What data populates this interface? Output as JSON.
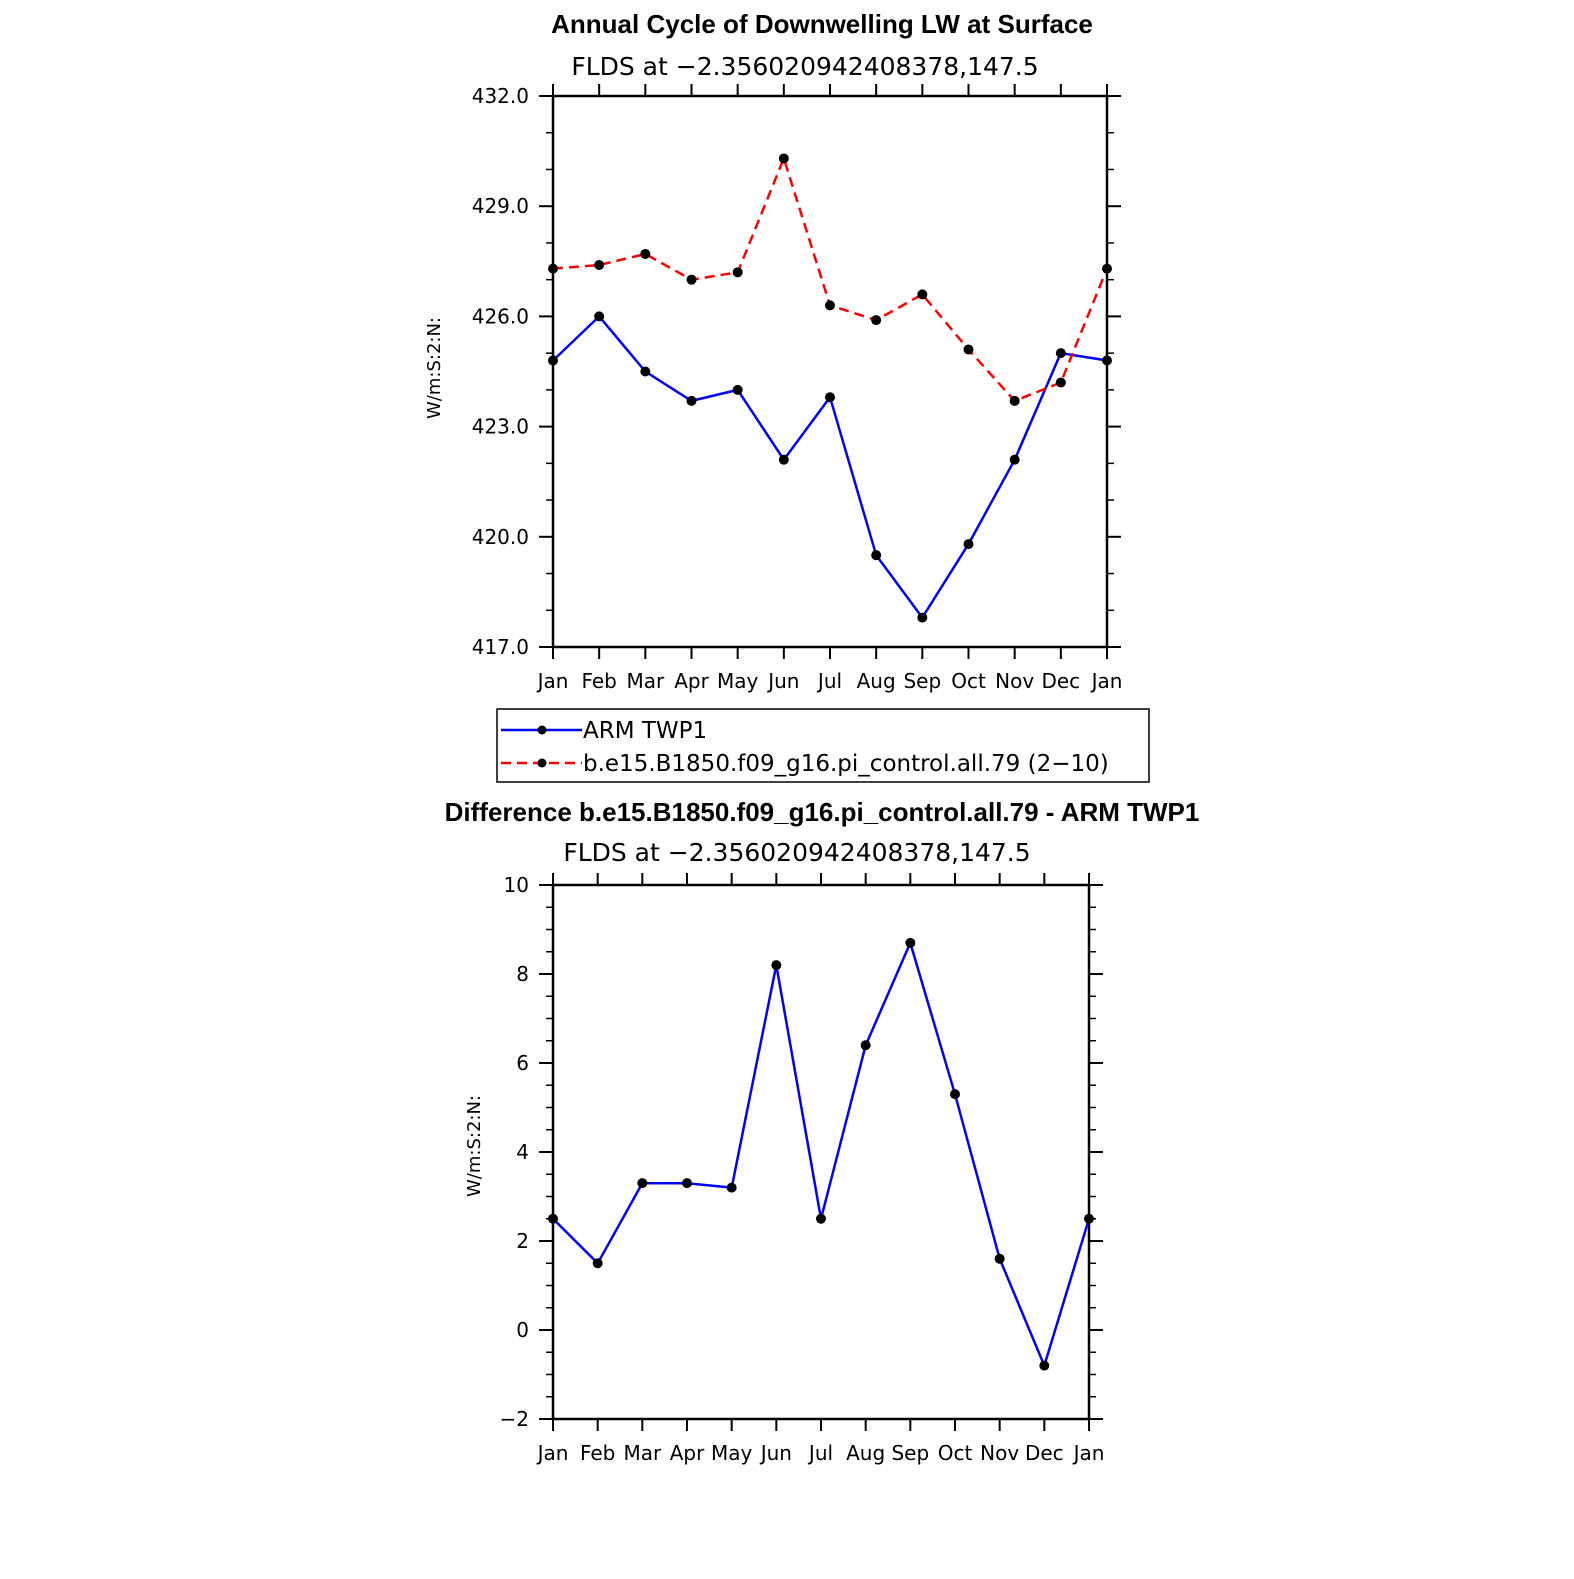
{
  "chart_data": [
    {
      "type": "line",
      "title": "Annual Cycle of Downwelling LW at Surface",
      "subtitle": "FLDS at −2.356020942408378,147.5",
      "ylabel": "W/m:S:2:N:",
      "xlabel": "",
      "categories": [
        "Jan",
        "Feb",
        "Mar",
        "Apr",
        "May",
        "Jun",
        "Jul",
        "Aug",
        "Sep",
        "Oct",
        "Nov",
        "Dec",
        "Jan"
      ],
      "ylim": [
        417.0,
        432.0
      ],
      "yticks": [
        "417.0",
        "420.0",
        "423.0",
        "426.0",
        "429.0",
        "432.0"
      ],
      "grid": false,
      "legend_position": "below",
      "series": [
        {
          "name": "ARM TWP1",
          "color": "#0000ff",
          "dash": "solid",
          "values": [
            424.8,
            426.0,
            424.5,
            423.7,
            424.0,
            422.1,
            423.8,
            419.5,
            417.8,
            419.8,
            422.1,
            425.0,
            424.8
          ]
        },
        {
          "name": "b.e15.B1850.f09_g16.pi_control.all.79 (2−10)",
          "color": "#ff0000",
          "dash": "dashed",
          "values": [
            427.3,
            427.4,
            427.7,
            427.0,
            427.2,
            430.3,
            426.3,
            425.9,
            426.6,
            425.1,
            423.7,
            424.2,
            427.3
          ]
        }
      ]
    },
    {
      "type": "line",
      "title": "Difference b.e15.B1850.f09_g16.pi_control.all.79 - ARM TWP1",
      "subtitle": "FLDS at −2.356020942408378,147.5",
      "ylabel": "W/m:S:2:N:",
      "xlabel": "",
      "categories": [
        "Jan",
        "Feb",
        "Mar",
        "Apr",
        "May",
        "Jun",
        "Jul",
        "Aug",
        "Sep",
        "Oct",
        "Nov",
        "Dec",
        "Jan"
      ],
      "ylim": [
        -2,
        10
      ],
      "yticks": [
        "−2",
        "0",
        "2",
        "4",
        "6",
        "8",
        "10"
      ],
      "grid": false,
      "series": [
        {
          "color": "#0000ff",
          "dash": "solid",
          "values": [
            2.5,
            1.5,
            3.3,
            3.3,
            3.2,
            8.2,
            2.5,
            6.4,
            8.7,
            5.3,
            1.6,
            -0.8,
            2.5
          ]
        }
      ]
    }
  ]
}
